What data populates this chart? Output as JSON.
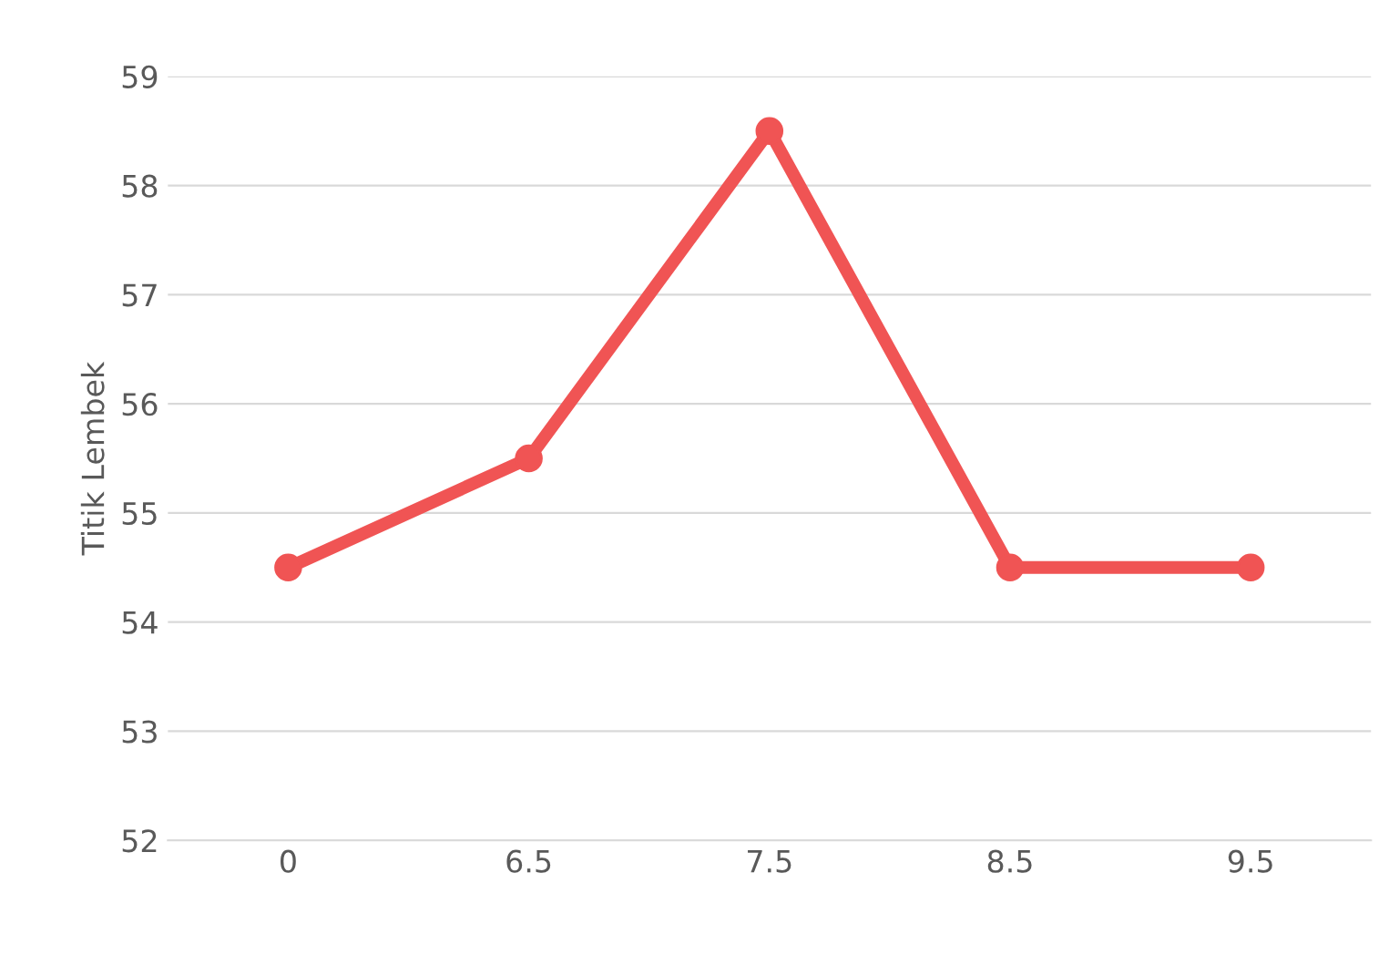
{
  "chart_data": {
    "type": "line",
    "ylabel": "Titik Lembek",
    "categories": [
      "0",
      "6.5",
      "7.5",
      "8.5",
      "9.5"
    ],
    "series": [
      {
        "color": "#f05454",
        "values": [
          54.5,
          55.5,
          58.5,
          54.5,
          54.5
        ]
      }
    ],
    "ylim": [
      52,
      59
    ],
    "yticks": [
      52,
      53,
      54,
      55,
      56,
      57,
      58,
      59
    ],
    "grid": "y",
    "marker": "circle",
    "line_style": "solid",
    "legend": false
  }
}
